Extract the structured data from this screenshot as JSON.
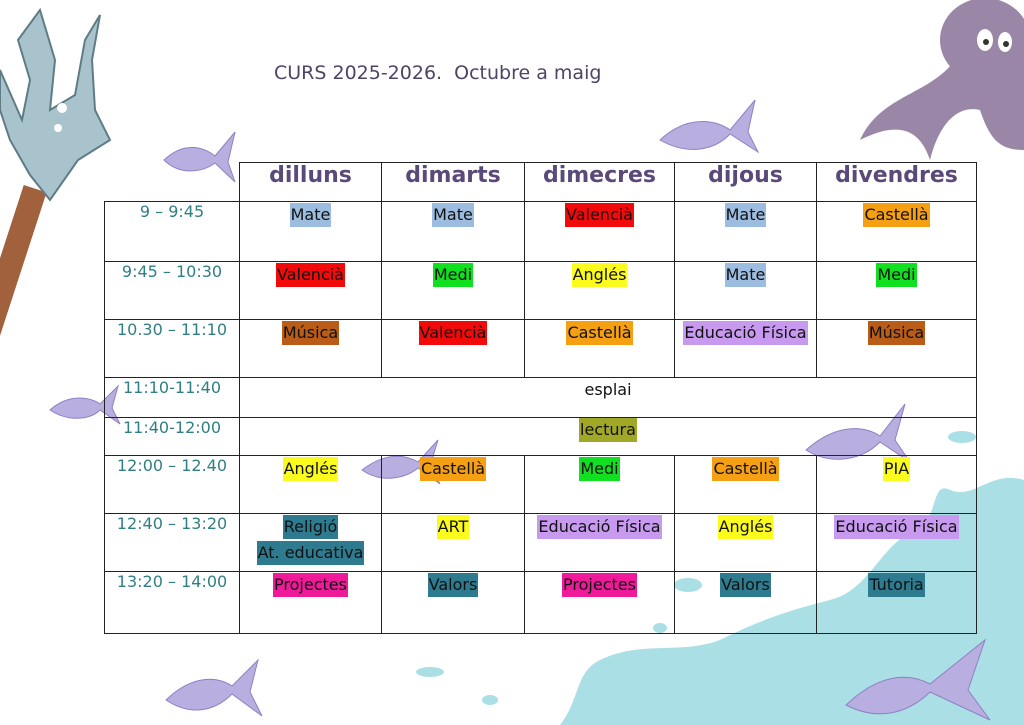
{
  "title": "CURS 2025-2026.  Octubre a maig",
  "days": [
    "dilluns",
    "dimarts",
    "dimecres",
    "dijous",
    "divendres"
  ],
  "rows": [
    {
      "time": "9 – 9:45",
      "cells": [
        "Mate",
        "Mate",
        "Valencià",
        "Mate",
        "Castellà"
      ]
    },
    {
      "time": "9:45 – 10:30",
      "cells": [
        "Valencià",
        "Medi",
        "Anglés",
        "Mate",
        "Medi"
      ]
    },
    {
      "time": "10.30 – 11:10",
      "cells": [
        "Música",
        "Valencià",
        "Castellà",
        "Educació Física",
        "Música"
      ]
    },
    {
      "time": "11:10-11:40",
      "span": "esplai"
    },
    {
      "time": "11:40-12:00",
      "span": "lectura"
    },
    {
      "time": "12:00 – 12.40",
      "cells": [
        "Anglés",
        "Castellà",
        "Medi",
        "Castellà",
        "PIA"
      ]
    },
    {
      "time": "12:40 – 13:20",
      "cells": [
        "Religió",
        "ART",
        "Educació Física",
        "Anglés",
        "Educació Física"
      ],
      "extra": "At. educativa"
    },
    {
      "time": "13:20 – 14:00",
      "cells": [
        "Projectes",
        "Valors",
        "Projectes",
        "Valors",
        "Tutoria"
      ]
    }
  ],
  "colors": {
    "Mate": "#9dbde0",
    "Valencià": "#f20a0a",
    "Castellà": "#f5a012",
    "Medi": "#10e020",
    "Anglés": "#fbfb1e",
    "Música": "#b85c17",
    "Educació Física": "#c79af0",
    "lectura": "#a1a827",
    "PIA": "#fbfb1e",
    "ART": "#fbfb1e",
    "Religió": "#2e7b8f",
    "At. educativa": "#2e7b8f",
    "Projectes": "#ee1a9a",
    "Valors": "#2e7b8f",
    "Tutoria": "#2e7b8f"
  },
  "icons": [
    "trident-icon",
    "octopus-icon",
    "fish-icon",
    "water-splash-icon"
  ]
}
